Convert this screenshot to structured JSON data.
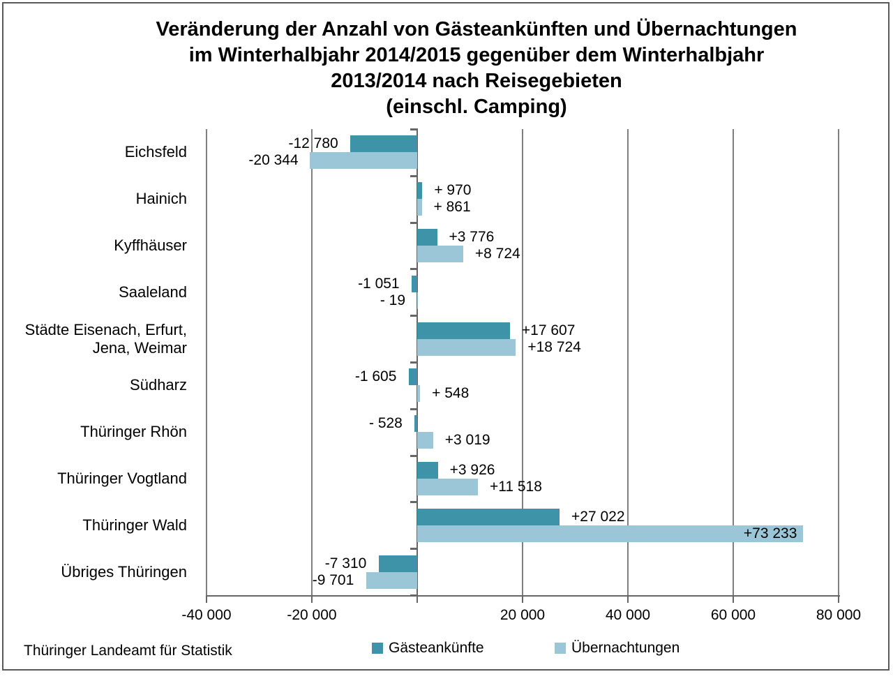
{
  "title": "Veränderung der Anzahl von Gästeankünften und Übernachtungen\nim Winterhalbjahr 2014/2015 gegenüber dem Winterhalbjahr\n2013/2014 nach Reisegebieten\n(einschl. Camping)",
  "source": "Thüringer Landeamt für Statistik",
  "colors": {
    "series_dark": "#3F93A8",
    "series_light": "#9AC6D7",
    "gridline": "#7f7f7f",
    "axis": "#666666",
    "frame": "#595959",
    "text": "#000000"
  },
  "chart_data": {
    "type": "bar",
    "orientation": "horizontal",
    "title": "Veränderung der Anzahl von Gästeankünften und Übernachtungen im Winterhalbjahr 2014/2015 gegenüber dem Winterhalbjahr 2013/2014 nach Reisegebieten (einschl. Camping)",
    "categories": [
      "Eichsfeld",
      "Hainich",
      "Kyffhäuser",
      "Saaleland",
      "Städte Eisenach, Erfurt,\nJena, Weimar",
      "Südharz",
      "Thüringer Rhön",
      "Thüringer Vogtland",
      "Thüringer Wald",
      "Übriges Thüringen"
    ],
    "series": [
      {
        "name": "Gästeankünfte",
        "color": "#3F93A8",
        "values": [
          -12780,
          970,
          3776,
          -1051,
          17607,
          -1605,
          -528,
          3926,
          27022,
          -7310
        ],
        "labels": [
          "-12 780",
          "+ 970",
          "+3 776",
          "-1 051",
          "+17 607",
          "-1 605",
          "- 528",
          "+3 926",
          "+27 022",
          "-7 310"
        ]
      },
      {
        "name": "Übernachtungen",
        "color": "#9AC6D7",
        "values": [
          -20344,
          861,
          8724,
          -19,
          18724,
          548,
          3019,
          11518,
          73233,
          -9701
        ],
        "labels": [
          "-20 344",
          "+ 861",
          "+8 724",
          "- 19",
          "+18 724",
          "+ 548",
          "+3 019",
          "+11 518",
          "+73 233",
          "-9 701"
        ]
      }
    ],
    "x_axis": {
      "min": -40000,
      "max": 80000,
      "tick_values": [
        -40000,
        -20000,
        0,
        20000,
        40000,
        60000,
        80000
      ],
      "tick_labels": [
        "-40 000",
        "-20 000",
        "",
        "20 000",
        "40 000",
        "60 000",
        "80 000"
      ]
    },
    "legend_position": "bottom",
    "grid": "vertical",
    "source": "Thüringer Landeamt für Statistik"
  }
}
